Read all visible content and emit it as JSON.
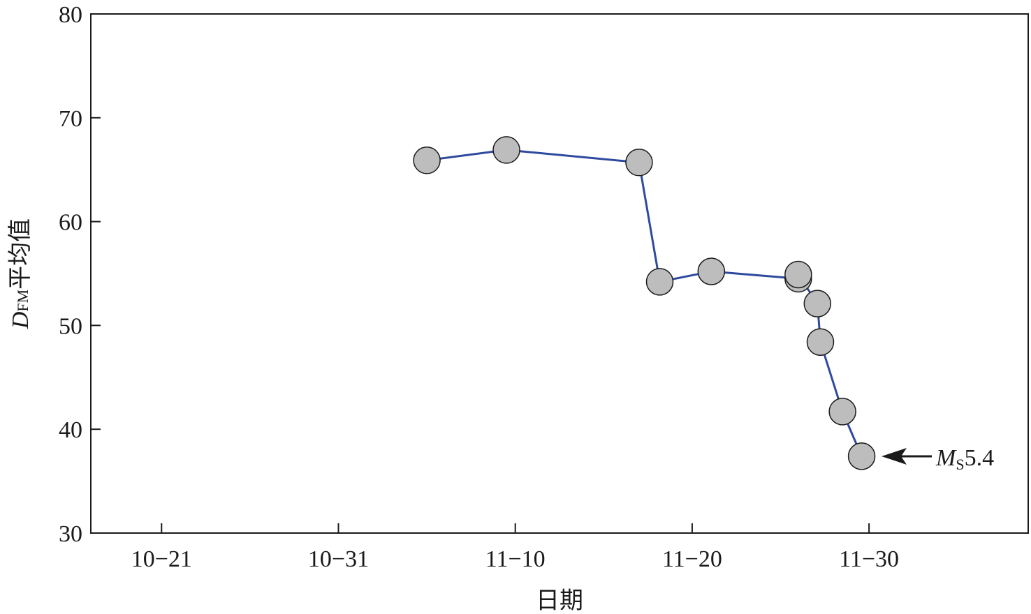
{
  "chart_data": {
    "type": "line",
    "title": "",
    "xlabel": "日期",
    "ylabel_main": "D",
    "ylabel_sub": "FM",
    "ylabel_rest": "平均值",
    "x_tick_labels": [
      "10−21",
      "10−31",
      "11−10",
      "11−20",
      "11−30"
    ],
    "x_ticks": [
      "2021-10-21",
      "2021-10-31",
      "2021-11-10",
      "2021-11-20",
      "2021-11-30"
    ],
    "xlim": [
      "2021-10-17",
      "2021-12-09"
    ],
    "ylim": [
      30,
      80
    ],
    "y_ticks": [
      30,
      40,
      50,
      60,
      70,
      80
    ],
    "grid": false,
    "series": [
      {
        "color": "#2e4a9e",
        "marker_fill": "#bdbdbd",
        "x": [
          "2021-11-05",
          "2021-11-09 12:00",
          "2021-11-17",
          "2021-11-18 04:00",
          "2021-11-21 02:00",
          "2021-11-26",
          "2021-11-26",
          "2021-11-27 02:00",
          "2021-11-27 06:00",
          "2021-11-28 12:00",
          "2021-11-29 14:00"
        ],
        "y": [
          65.9,
          66.9,
          65.7,
          54.2,
          55.2,
          54.5,
          54.9,
          52.1,
          48.4,
          41.7,
          37.4
        ]
      }
    ],
    "annotations": [
      {
        "text_main": "M",
        "text_sub": "S",
        "text_rest": "5.4",
        "points_to": {
          "x": "2021-11-29 14:00",
          "y": 37.4
        }
      }
    ]
  }
}
